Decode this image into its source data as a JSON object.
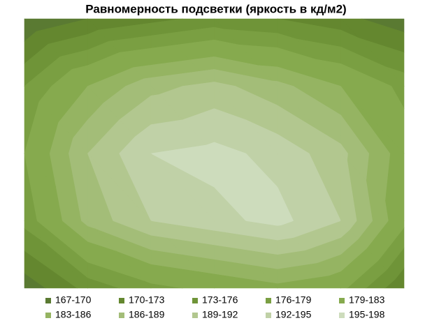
{
  "chart_data": {
    "type": "contour",
    "title": "Равномерность подсветки (яркость в кд/м2)",
    "z": [
      [
        167,
        170,
        172,
        174,
        173,
        171,
        168
      ],
      [
        176,
        183,
        188,
        190,
        187,
        183,
        178
      ],
      [
        179,
        189,
        195,
        196,
        194,
        190,
        181
      ],
      [
        177,
        187,
        192,
        194,
        196,
        192,
        180
      ],
      [
        168,
        174,
        178,
        180,
        182,
        180,
        170
      ]
    ],
    "bands": [
      {
        "name": "167-170",
        "from": 167,
        "to": 170,
        "color": "#5a7a32"
      },
      {
        "name": "170-173",
        "from": 170,
        "to": 173,
        "color": "#64872f"
      },
      {
        "name": "173-176",
        "from": 173,
        "to": 176,
        "color": "#6f9438"
      },
      {
        "name": "176-179",
        "from": 176,
        "to": 179,
        "color": "#7a9f42"
      },
      {
        "name": "179-183",
        "from": 179,
        "to": 183,
        "color": "#86aa4e"
      },
      {
        "name": "183-186",
        "from": 183,
        "to": 186,
        "color": "#95b462"
      },
      {
        "name": "186-189",
        "from": 186,
        "to": 189,
        "color": "#a3bd78"
      },
      {
        "name": "189-192",
        "from": 189,
        "to": 192,
        "color": "#b2c78f"
      },
      {
        "name": "192-195",
        "from": 192,
        "to": 195,
        "color": "#c0d1a7"
      },
      {
        "name": "195-198",
        "from": 195,
        "to": 198,
        "color": "#cddcbc"
      }
    ]
  }
}
